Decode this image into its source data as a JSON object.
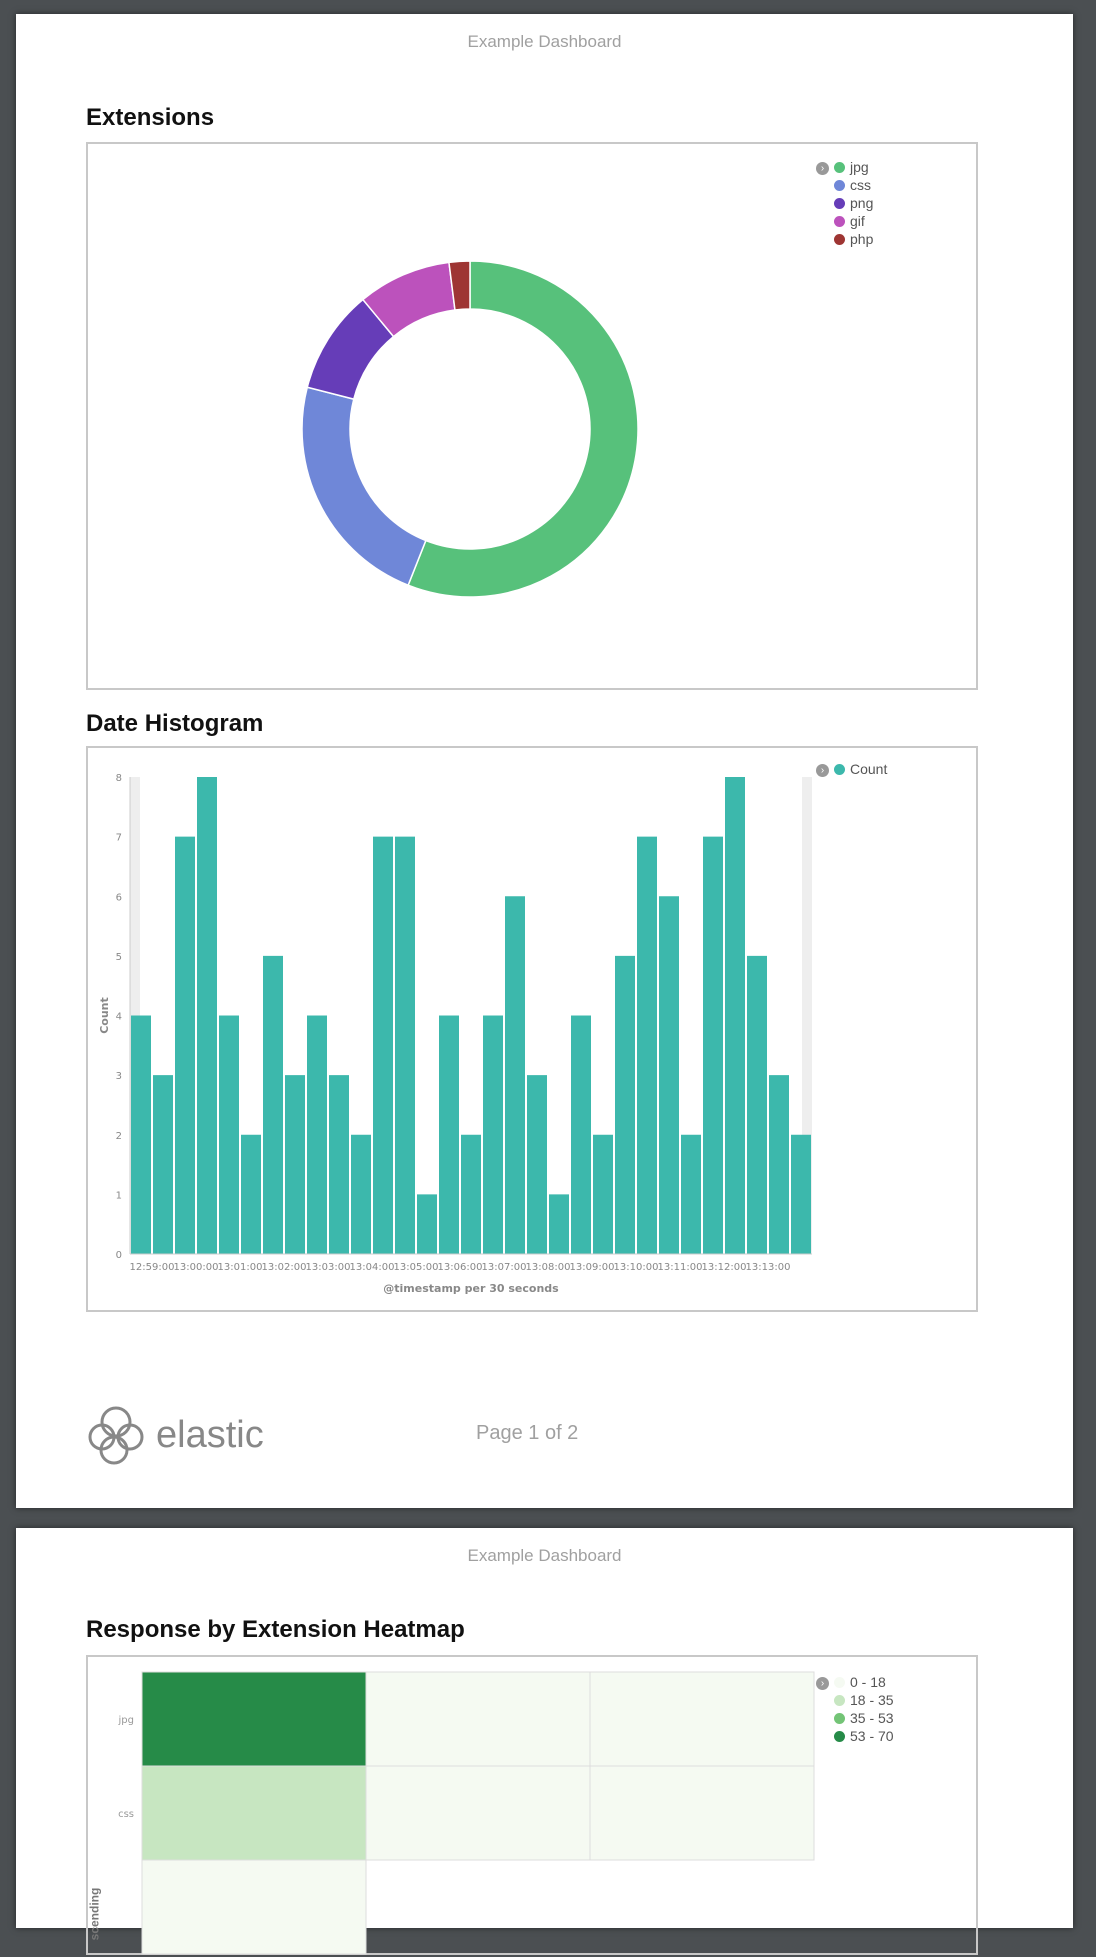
{
  "dashboard_title": "Example Dashboard",
  "page1": {
    "footer": "Page 1 of 2",
    "logo_text": "elastic"
  },
  "extensions": {
    "title": "Extensions",
    "legend": [
      {
        "label": "jpg",
        "color": "#57c17b"
      },
      {
        "label": "css",
        "color": "#6f87d8"
      },
      {
        "label": "png",
        "color": "#663db8"
      },
      {
        "label": "gif",
        "color": "#bc52bc"
      },
      {
        "label": "php",
        "color": "#9e3533"
      }
    ]
  },
  "histogram": {
    "title": "Date Histogram",
    "legend": "Count",
    "color": "#3cb8ac"
  },
  "heatmap": {
    "title": "Response by Extension Heatmap",
    "ylabel_partial": "scending",
    "legend": [
      {
        "label": "0 - 18",
        "color": "#f5faf2"
      },
      {
        "label": "18 - 35",
        "color": "#c7e6c1"
      },
      {
        "label": "35 - 53",
        "color": "#73c476"
      },
      {
        "label": "53 - 70",
        "color": "#268b48"
      }
    ]
  },
  "chart_data": [
    {
      "type": "pie",
      "donut": true,
      "categories": [
        "jpg",
        "css",
        "png",
        "gif",
        "php"
      ],
      "values": [
        56,
        23,
        10,
        9,
        2
      ]
    },
    {
      "type": "bar",
      "xlabel": "@timestamp per 30 seconds",
      "ylabel": "Count",
      "ylim": [
        0,
        8
      ],
      "yticks": [
        0,
        1,
        2,
        3,
        4,
        5,
        6,
        7,
        8
      ],
      "xticks": [
        "12:59:00",
        "13:00:00",
        "13:01:00",
        "13:02:00",
        "13:03:00",
        "13:04:00",
        "13:05:00",
        "13:06:00",
        "13:07:00",
        "13:08:00",
        "13:09:00",
        "13:10:00",
        "13:11:00",
        "13:12:00",
        "13:13:00"
      ],
      "values": [
        4,
        3,
        7,
        8,
        4,
        2,
        5,
        3,
        4,
        3,
        2,
        7,
        7,
        1,
        4,
        2,
        4,
        6,
        3,
        1,
        4,
        2,
        5,
        7,
        6,
        2,
        7,
        8,
        5,
        3,
        2
      ]
    },
    {
      "type": "heatmap",
      "rows": [
        "jpg",
        "css",
        ""
      ],
      "cells": [
        [
          "53 - 70",
          "0 - 18",
          "0 - 18"
        ],
        [
          "18 - 35",
          "0 - 18",
          "0 - 18"
        ],
        [
          "0 - 18"
        ]
      ]
    }
  ]
}
